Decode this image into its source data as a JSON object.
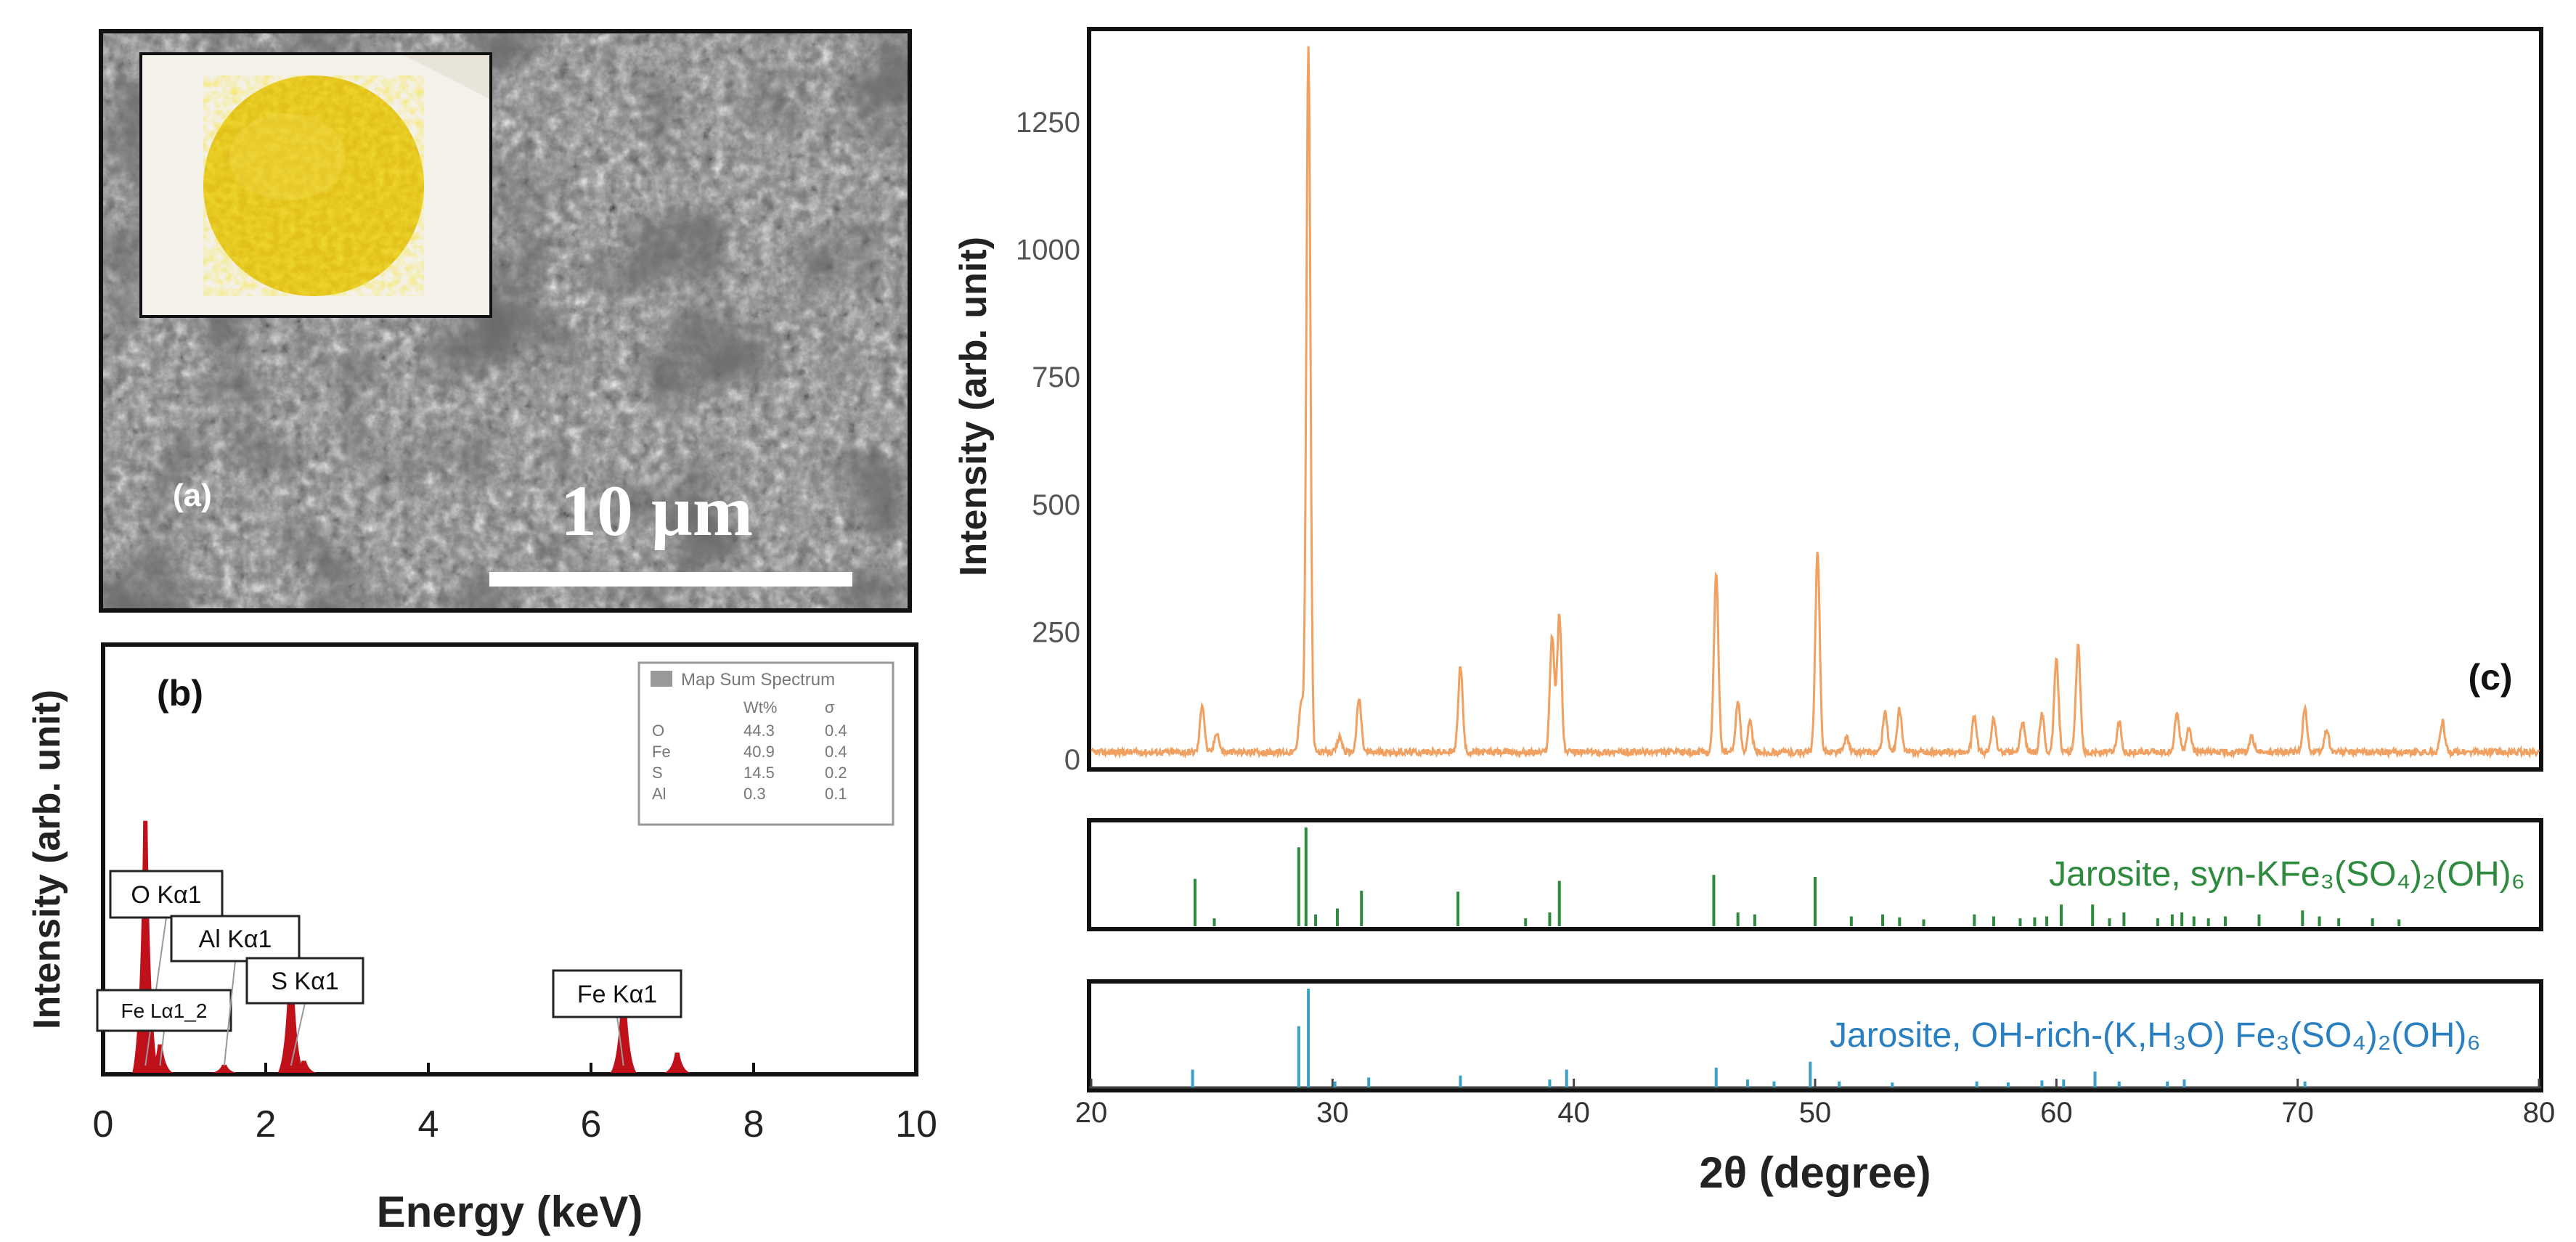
{
  "panels": {
    "a": {
      "label": "(a)",
      "scale_text": "10 μm"
    },
    "b": {
      "label": "(b)",
      "legend": {
        "title": "Map Sum Spectrum",
        "columns": [
          "Wt%",
          "σ"
        ],
        "rows": [
          {
            "element": "O",
            "wt": "44.3",
            "sigma": "0.4"
          },
          {
            "element": "Fe",
            "wt": "40.9",
            "sigma": "0.4"
          },
          {
            "element": "S",
            "wt": "14.5",
            "sigma": "0.2"
          },
          {
            "element": "Al",
            "wt": "0.3",
            "sigma": "0.1"
          }
        ]
      }
    },
    "c": {
      "label": "(c)",
      "ref1_label": "Jarosite, syn-KFe₃(SO₄)₂(OH)₆",
      "ref2_label": "Jarosite, OH-rich-(K,H₃O) Fe₃(SO₄)₂(OH)₆"
    }
  },
  "colors": {
    "eds_peak": "#c0101a",
    "xrd_line": "#f0a060",
    "ref1": "#2e8b3e",
    "ref2": "#3aa0c8",
    "ref2_text": "#2a7fc0"
  },
  "chart_data": [
    {
      "type": "area",
      "title": "",
      "xlabel": "Energy (keV)",
      "ylabel": "Intensity (arb. unit)",
      "xlim": [
        0,
        10
      ],
      "x_ticks": [
        "0",
        "2",
        "4",
        "6",
        "8",
        "10"
      ],
      "y_ticks": [],
      "peaks": [
        {
          "x": 0.52,
          "height": 0.62
        },
        {
          "x": 0.7,
          "height": 0.07
        },
        {
          "x": 1.49,
          "height": 0.02
        },
        {
          "x": 2.31,
          "height": 0.28
        },
        {
          "x": 2.47,
          "height": 0.03
        },
        {
          "x": 6.4,
          "height": 0.21
        },
        {
          "x": 7.06,
          "height": 0.05
        }
      ],
      "annotations": [
        {
          "text": "O Kα1",
          "x": 0.52
        },
        {
          "text": "Fe Lα1_2",
          "x": 0.7
        },
        {
          "text": "Al Kα1",
          "x": 1.49
        },
        {
          "text": "S Kα1",
          "x": 2.31
        },
        {
          "text": "Fe Kα1",
          "x": 6.4
        }
      ]
    },
    {
      "type": "line",
      "title": "",
      "xlabel": "2θ (degree)",
      "ylabel": "Intensity (arb. unit)",
      "xlim": [
        20,
        80
      ],
      "ylim": [
        0,
        1400
      ],
      "x_ticks": [
        "20",
        "30",
        "40",
        "50",
        "60",
        "70",
        "80"
      ],
      "y_ticks": [
        "0",
        "250",
        "500",
        "750",
        "1000",
        "1250"
      ],
      "series": [
        {
          "peaks": [
            {
              "x": 24.6,
              "y": 95
            },
            {
              "x": 25.2,
              "y": 40
            },
            {
              "x": 28.7,
              "y": 100
            },
            {
              "x": 29.0,
              "y": 1380
            },
            {
              "x": 30.3,
              "y": 30
            },
            {
              "x": 31.1,
              "y": 105
            },
            {
              "x": 35.3,
              "y": 170
            },
            {
              "x": 39.1,
              "y": 230
            },
            {
              "x": 39.4,
              "y": 270
            },
            {
              "x": 45.9,
              "y": 350
            },
            {
              "x": 46.8,
              "y": 100
            },
            {
              "x": 47.3,
              "y": 60
            },
            {
              "x": 50.1,
              "y": 390
            },
            {
              "x": 51.3,
              "y": 30
            },
            {
              "x": 52.9,
              "y": 80
            },
            {
              "x": 53.5,
              "y": 85
            },
            {
              "x": 56.6,
              "y": 70
            },
            {
              "x": 57.4,
              "y": 65
            },
            {
              "x": 58.6,
              "y": 60
            },
            {
              "x": 59.4,
              "y": 75
            },
            {
              "x": 60.0,
              "y": 180
            },
            {
              "x": 60.9,
              "y": 210
            },
            {
              "x": 62.6,
              "y": 60
            },
            {
              "x": 65.0,
              "y": 80
            },
            {
              "x": 65.5,
              "y": 50
            },
            {
              "x": 68.1,
              "y": 30
            },
            {
              "x": 70.3,
              "y": 85
            },
            {
              "x": 71.2,
              "y": 45
            },
            {
              "x": 76.0,
              "y": 60
            }
          ]
        }
      ]
    },
    {
      "type": "bar",
      "name": "Jarosite, syn-KFe₃(SO₄)₂(OH)₆",
      "xlim": [
        20,
        80
      ],
      "lines": [
        {
          "x": 24.3,
          "h": 0.48
        },
        {
          "x": 25.1,
          "h": 0.08
        },
        {
          "x": 28.6,
          "h": 0.8
        },
        {
          "x": 28.9,
          "h": 1.0
        },
        {
          "x": 29.3,
          "h": 0.12
        },
        {
          "x": 30.2,
          "h": 0.18
        },
        {
          "x": 31.2,
          "h": 0.36
        },
        {
          "x": 35.2,
          "h": 0.35
        },
        {
          "x": 38.0,
          "h": 0.08
        },
        {
          "x": 39.0,
          "h": 0.14
        },
        {
          "x": 39.4,
          "h": 0.46
        },
        {
          "x": 45.8,
          "h": 0.52
        },
        {
          "x": 46.8,
          "h": 0.14
        },
        {
          "x": 47.5,
          "h": 0.12
        },
        {
          "x": 50.0,
          "h": 0.5
        },
        {
          "x": 51.5,
          "h": 0.1
        },
        {
          "x": 52.8,
          "h": 0.12
        },
        {
          "x": 53.5,
          "h": 0.09
        },
        {
          "x": 54.5,
          "h": 0.07
        },
        {
          "x": 56.6,
          "h": 0.12
        },
        {
          "x": 57.4,
          "h": 0.1
        },
        {
          "x": 58.5,
          "h": 0.08
        },
        {
          "x": 59.1,
          "h": 0.09
        },
        {
          "x": 59.6,
          "h": 0.1
        },
        {
          "x": 60.2,
          "h": 0.22
        },
        {
          "x": 61.5,
          "h": 0.22
        },
        {
          "x": 62.2,
          "h": 0.08
        },
        {
          "x": 62.8,
          "h": 0.14
        },
        {
          "x": 64.2,
          "h": 0.08
        },
        {
          "x": 64.8,
          "h": 0.12
        },
        {
          "x": 65.2,
          "h": 0.14
        },
        {
          "x": 65.7,
          "h": 0.1
        },
        {
          "x": 66.3,
          "h": 0.08
        },
        {
          "x": 67.0,
          "h": 0.1
        },
        {
          "x": 68.4,
          "h": 0.12
        },
        {
          "x": 70.2,
          "h": 0.16
        },
        {
          "x": 70.9,
          "h": 0.1
        },
        {
          "x": 71.7,
          "h": 0.08
        },
        {
          "x": 73.1,
          "h": 0.08
        },
        {
          "x": 74.2,
          "h": 0.07
        }
      ]
    },
    {
      "type": "bar",
      "name": "Jarosite, OH-rich-(K,H₃O) Fe₃(SO₄)₂(OH)₆",
      "xlim": [
        20,
        80
      ],
      "lines": [
        {
          "x": 24.2,
          "h": 0.18
        },
        {
          "x": 28.6,
          "h": 0.62
        },
        {
          "x": 29.0,
          "h": 1.0
        },
        {
          "x": 30.1,
          "h": 0.06
        },
        {
          "x": 31.5,
          "h": 0.1
        },
        {
          "x": 35.3,
          "h": 0.12
        },
        {
          "x": 39.0,
          "h": 0.08
        },
        {
          "x": 39.7,
          "h": 0.18
        },
        {
          "x": 45.9,
          "h": 0.2
        },
        {
          "x": 47.2,
          "h": 0.08
        },
        {
          "x": 48.3,
          "h": 0.06
        },
        {
          "x": 49.8,
          "h": 0.26
        },
        {
          "x": 51.0,
          "h": 0.06
        },
        {
          "x": 53.2,
          "h": 0.05
        },
        {
          "x": 56.7,
          "h": 0.06
        },
        {
          "x": 58.0,
          "h": 0.05
        },
        {
          "x": 59.4,
          "h": 0.07
        },
        {
          "x": 60.3,
          "h": 0.08
        },
        {
          "x": 61.6,
          "h": 0.16
        },
        {
          "x": 62.6,
          "h": 0.06
        },
        {
          "x": 64.6,
          "h": 0.06
        },
        {
          "x": 65.3,
          "h": 0.08
        },
        {
          "x": 70.3,
          "h": 0.06
        }
      ]
    }
  ]
}
